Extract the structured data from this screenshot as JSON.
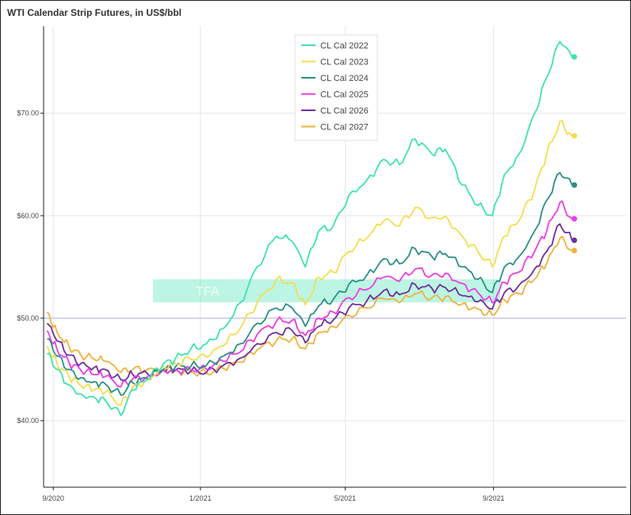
{
  "chart_data": {
    "type": "line",
    "title": "WTI Calendar Strip Futures, in US$/bbl",
    "xlabel": "",
    "ylabel": "",
    "x": [
      "2020-08-27",
      "2020-09-04",
      "2020-09-14",
      "2020-09-24",
      "2020-10-05",
      "2020-10-14",
      "2020-10-27",
      "2020-11-06",
      "2020-11-18",
      "2020-12-01",
      "2020-12-11",
      "2020-12-24",
      "2021-01-06",
      "2021-01-20",
      "2021-02-03",
      "2021-02-17",
      "2021-03-05",
      "2021-03-18",
      "2021-03-29",
      "2021-04-09",
      "2021-04-21",
      "2021-05-04",
      "2021-05-19",
      "2021-06-02",
      "2021-06-15",
      "2021-06-28",
      "2021-07-12",
      "2021-07-23",
      "2021-08-06",
      "2021-08-19",
      "2021-08-31",
      "2021-09-10",
      "2021-09-22",
      "2021-10-05",
      "2021-10-15",
      "2021-10-26",
      "2021-11-05"
    ],
    "x_ticks": [
      "9/2020",
      "1/2021",
      "5/2021",
      "9/2021"
    ],
    "y_ticks": [
      "$40.00",
      "$50.00",
      "$60.00",
      "$70.00"
    ],
    "ylim": [
      33.5,
      78.5
    ],
    "xlim": [
      "2020-08-24",
      "2021-12-20"
    ],
    "reference_line": {
      "y": 50,
      "color": "#c6c6ee"
    },
    "legend_position": "top-center",
    "grid": true,
    "series": [
      {
        "name": "CL Cal 2022",
        "color": "#3ee3b0",
        "values": [
          46.5,
          45.0,
          43.5,
          42.6,
          42.3,
          42.0,
          40.5,
          43.0,
          44.0,
          45.5,
          46.0,
          47.0,
          47.5,
          49.0,
          51.5,
          55.0,
          58.0,
          57.5,
          55.0,
          58.5,
          59.0,
          62.0,
          63.5,
          65.5,
          65.0,
          67.5,
          66.0,
          66.5,
          63.0,
          61.0,
          60.0,
          64.0,
          66.0,
          70.0,
          73.5,
          77.0,
          75.5
        ]
      },
      {
        "name": "CL Cal 2023",
        "color": "#f5dd50",
        "values": [
          47.3,
          45.6,
          44.3,
          43.4,
          43.0,
          42.8,
          41.5,
          43.3,
          44.0,
          45.3,
          45.6,
          46.0,
          46.2,
          47.3,
          49.0,
          51.5,
          53.8,
          53.5,
          51.3,
          54.0,
          54.5,
          56.5,
          57.8,
          59.5,
          59.0,
          60.8,
          59.8,
          60.0,
          58.0,
          56.5,
          55.0,
          58.0,
          59.5,
          62.5,
          66.0,
          69.2,
          67.8
        ]
      },
      {
        "name": "CL Cal 2024",
        "color": "#2a8f86",
        "values": [
          48.0,
          46.3,
          45.0,
          44.2,
          43.8,
          43.6,
          42.5,
          43.7,
          44.1,
          45.0,
          45.2,
          45.3,
          45.4,
          46.3,
          47.5,
          49.5,
          51.0,
          51.0,
          49.2,
          51.2,
          51.8,
          53.3,
          54.2,
          55.8,
          55.3,
          56.8,
          56.0,
          56.3,
          55.0,
          53.8,
          52.5,
          55.0,
          56.0,
          58.5,
          61.5,
          64.2,
          63.0
        ]
      },
      {
        "name": "CL Cal 2025",
        "color": "#ee3be8",
        "values": [
          48.8,
          47.0,
          45.7,
          44.9,
          44.5,
          44.3,
          43.3,
          44.1,
          44.3,
          44.9,
          45.0,
          45.0,
          45.0,
          45.8,
          46.7,
          48.4,
          49.7,
          49.8,
          48.3,
          50.0,
          50.6,
          52.0,
          52.8,
          54.0,
          53.6,
          54.8,
          54.2,
          54.4,
          53.4,
          52.5,
          51.5,
          53.5,
          54.5,
          56.5,
          58.5,
          61.3,
          59.7
        ]
      },
      {
        "name": "CL Cal 2026",
        "color": "#6e2e9c",
        "values": [
          49.5,
          47.8,
          46.4,
          45.6,
          45.2,
          45.0,
          44.0,
          44.5,
          44.6,
          44.9,
          44.9,
          44.8,
          44.7,
          45.4,
          46.1,
          47.5,
          48.6,
          48.8,
          47.6,
          49.2,
          49.8,
          51.0,
          51.7,
          52.7,
          52.3,
          53.3,
          52.9,
          53.0,
          52.2,
          51.6,
          50.9,
          52.5,
          53.2,
          54.8,
          56.5,
          59.2,
          57.6
        ]
      },
      {
        "name": "CL Cal 2027",
        "color": "#f0b23a",
        "values": [
          50.6,
          48.7,
          47.3,
          46.4,
          46.0,
          45.8,
          44.7,
          45.0,
          45.0,
          45.0,
          44.9,
          44.8,
          44.6,
          45.1,
          45.7,
          46.9,
          47.8,
          48.0,
          47.0,
          48.6,
          49.2,
          50.3,
          51.0,
          51.9,
          51.5,
          52.4,
          52.0,
          52.1,
          51.4,
          50.9,
          50.3,
          51.8,
          52.4,
          53.8,
          55.3,
          57.8,
          56.6
        ]
      }
    ]
  },
  "watermark": {
    "text": "TFA",
    "color": "#3ee3b0"
  }
}
